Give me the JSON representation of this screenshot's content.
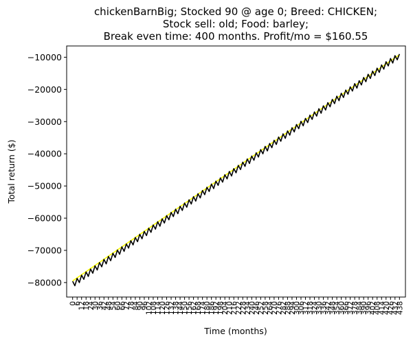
{
  "chart_data": {
    "type": "line",
    "title_lines": [
      "chickenBarnBig; Stocked 90 @ age 0; Breed: CHICKEN;",
      "Stock sell: old; Food: barley;",
      "Break even time: 400 months. Profit/mo = $160.55"
    ],
    "xlabel": "Time (months)",
    "ylabel": "Total return ($)",
    "xlim": [
      -8,
      446
    ],
    "ylim": [
      -84500,
      -6500
    ],
    "y_ticks": [
      -80000,
      -70000,
      -60000,
      -50000,
      -40000,
      -30000,
      -20000,
      -10000
    ],
    "y_tick_labels": [
      "−80000",
      "−70000",
      "−60000",
      "−50000",
      "−40000",
      "−30000",
      "−20000",
      "−10000"
    ],
    "x_ticks": [
      0,
      6,
      12,
      18,
      24,
      30,
      36,
      42,
      48,
      54,
      60,
      66,
      72,
      78,
      84,
      90,
      96,
      102,
      108,
      114,
      120,
      126,
      132,
      138,
      144,
      150,
      156,
      162,
      168,
      174,
      180,
      186,
      192,
      198,
      204,
      210,
      216,
      222,
      228,
      234,
      240,
      246,
      252,
      258,
      264,
      270,
      276,
      282,
      288,
      294,
      300,
      306,
      312,
      318,
      324,
      330,
      336,
      342,
      348,
      354,
      360,
      366,
      372,
      378,
      384,
      390,
      396,
      402,
      408,
      414,
      420,
      426,
      432,
      438
    ],
    "x_tick_labels": [
      "0",
      "6",
      "12",
      "18",
      "24",
      "30",
      "36",
      "42",
      "48",
      "54",
      "60",
      "66",
      "72",
      "78",
      "84",
      "90",
      "96",
      "102",
      "108",
      "114",
      "120",
      "126",
      "132",
      "138",
      "144",
      "150",
      "156",
      "162",
      "168",
      "174",
      "180",
      "186",
      "192",
      "198",
      "204",
      "210",
      "216",
      "222",
      "228",
      "234",
      "240",
      "246",
      "252",
      "258",
      "264",
      "270",
      "276",
      "282",
      "288",
      "294",
      "300",
      "306",
      "312",
      "318",
      "324",
      "330",
      "336",
      "342",
      "348",
      "354",
      "360",
      "366",
      "372",
      "378",
      "384",
      "390",
      "396",
      "402",
      "408",
      "414",
      "420",
      "426",
      "432",
      "438"
    ],
    "grid": false,
    "legend": false,
    "series": [
      {
        "color": "#ffff00",
        "x": [
          0,
          438
        ],
        "y": [
          -79500,
          -9200
        ]
      },
      {
        "color": "#000000",
        "x": [
          0,
          3,
          6,
          9,
          12,
          15,
          18,
          21,
          24,
          27,
          30,
          33,
          36,
          39,
          42,
          45,
          48,
          51,
          54,
          57,
          60,
          63,
          66,
          69,
          72,
          75,
          78,
          81,
          84,
          87,
          90,
          93,
          96,
          99,
          102,
          105,
          108,
          111,
          114,
          117,
          120,
          123,
          126,
          129,
          132,
          135,
          138,
          141,
          144,
          147,
          150,
          153,
          156,
          159,
          162,
          165,
          168,
          171,
          174,
          177,
          180,
          183,
          186,
          189,
          192,
          195,
          198,
          201,
          204,
          207,
          210,
          213,
          216,
          219,
          222,
          225,
          228,
          231,
          234,
          237,
          240,
          243,
          246,
          249,
          252,
          255,
          258,
          261,
          264,
          267,
          270,
          273,
          276,
          279,
          282,
          285,
          288,
          291,
          294,
          297,
          300,
          303,
          306,
          309,
          312,
          315,
          318,
          321,
          324,
          327,
          330,
          333,
          336,
          339,
          342,
          345,
          348,
          351,
          354,
          357,
          360,
          363,
          366,
          369,
          372,
          375,
          378,
          381,
          384,
          387,
          390,
          393,
          396,
          399,
          402,
          405,
          408,
          411,
          414,
          417,
          420,
          423,
          426,
          429,
          432,
          435,
          438
        ],
        "y": [
          -79600,
          -81000,
          -78700,
          -80000,
          -77700,
          -79000,
          -76700,
          -78100,
          -75800,
          -77100,
          -74800,
          -76100,
          -73800,
          -75100,
          -72800,
          -74200,
          -71900,
          -73200,
          -70900,
          -72200,
          -69900,
          -71200,
          -68900,
          -70300,
          -68000,
          -69300,
          -67000,
          -68300,
          -66000,
          -67300,
          -65000,
          -66400,
          -64100,
          -65400,
          -63100,
          -64400,
          -62100,
          -63400,
          -61100,
          -62500,
          -60200,
          -61500,
          -59200,
          -60500,
          -58200,
          -59500,
          -57200,
          -58600,
          -56300,
          -57600,
          -55300,
          -56600,
          -54300,
          -55600,
          -53300,
          -54700,
          -52400,
          -53700,
          -51400,
          -52700,
          -50400,
          -51700,
          -49400,
          -50800,
          -48500,
          -49800,
          -47500,
          -48800,
          -46500,
          -47800,
          -45500,
          -46900,
          -44600,
          -45900,
          -43600,
          -44900,
          -42600,
          -43900,
          -41600,
          -43000,
          -40700,
          -42000,
          -39700,
          -41000,
          -38700,
          -40000,
          -37700,
          -39100,
          -36800,
          -38100,
          -35800,
          -37100,
          -34800,
          -36100,
          -33800,
          -35200,
          -32900,
          -34200,
          -31900,
          -33200,
          -30900,
          -32200,
          -29900,
          -31300,
          -29000,
          -30300,
          -28000,
          -29300,
          -27000,
          -28300,
          -26000,
          -27400,
          -25100,
          -26400,
          -24100,
          -25400,
          -23100,
          -24400,
          -22100,
          -23500,
          -21200,
          -22500,
          -20200,
          -21500,
          -19200,
          -20500,
          -18200,
          -19600,
          -17300,
          -18600,
          -16300,
          -17600,
          -15300,
          -16600,
          -14300,
          -15700,
          -13400,
          -14700,
          -12400,
          -13700,
          -11400,
          -12700,
          -10400,
          -11800,
          -9500,
          -10800,
          -9000
        ]
      }
    ]
  }
}
